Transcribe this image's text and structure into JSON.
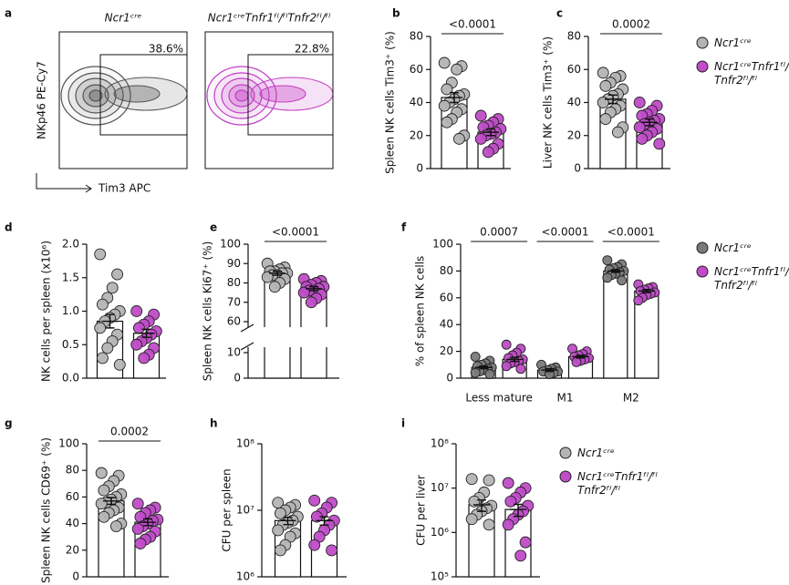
{
  "chart_data": [
    {
      "type": "flow",
      "panel": "a",
      "ylabel": "NKp46 PE-Cy7",
      "xlabel": "Tim3 APC",
      "plots": [
        {
          "title": "Ncr1ᶜʳᵉ",
          "color": "#555555"
        },
        {
          "title": "Ncr1ᶜʳᵉTnfr1ᶠˡ/ᶠˡTnfr2ᶠˡ/ᶠˡ",
          "color": "#c23fc4"
        }
      ],
      "values": [
        38.6,
        22.8
      ],
      "value_labels": [
        "38.6%",
        "22.8%"
      ]
    },
    {
      "type": "bar",
      "panel": "b",
      "ylabel": "Spleen NK cells Tim3⁺ (%)",
      "ylim": [
        0,
        80
      ],
      "yticks": [
        0,
        20,
        40,
        60,
        80
      ],
      "pvalues": [
        "<0.0001"
      ],
      "series": [
        {
          "name": "Ncr1ᶜʳᵉ",
          "color": "#b4b4b4",
          "values": [
            43
          ],
          "errors": [
            3
          ],
          "points": [
            [
              64,
              62,
              60,
              52,
              48,
              45,
              44,
              42,
              40,
              38,
              36,
              34,
              30,
              28,
              20,
              18
            ]
          ]
        },
        {
          "name": "Ncr1ᶜʳᵉTnfr1ᶠˡ/ᶠˡ Tnfr2ᶠˡ/ᶠˡ",
          "color": "#c04cc8",
          "values": [
            22
          ],
          "errors": [
            2
          ],
          "points": [
            [
              32,
              30,
              28,
              26,
              25,
              24,
              22,
              21,
              20,
              18,
              15,
              12,
              10
            ]
          ]
        }
      ]
    },
    {
      "type": "bar",
      "panel": "c",
      "ylabel": "Liver NK cells Tim3⁺ (%)",
      "ylim": [
        0,
        80
      ],
      "yticks": [
        0,
        20,
        40,
        60,
        80
      ],
      "pvalues": [
        "0.0002"
      ],
      "legend": "right",
      "series": [
        {
          "name": "Ncr1ᶜʳᵉ",
          "color": "#b4b4b4",
          "values": [
            42
          ],
          "errors": [
            2.5
          ],
          "points": [
            [
              58,
              56,
              55,
              52,
              50,
              48,
              45,
              44,
              42,
              40,
              38,
              36,
              34,
              30,
              25,
              22
            ]
          ]
        },
        {
          "name": "Ncr1ᶜʳᵉTnfr1ᶠˡ/ᶠˡ Tnfr2ᶠˡ/ᶠˡ",
          "color": "#c04cc8",
          "values": [
            28
          ],
          "errors": [
            2
          ],
          "points": [
            [
              40,
              38,
              35,
              33,
              32,
              30,
              29,
              28,
              27,
              25,
              24,
              22,
              20,
              18,
              15
            ]
          ]
        }
      ]
    },
    {
      "type": "bar",
      "panel": "d",
      "ylabel": "NK cells per spleen (x10⁶)",
      "ylim": [
        0,
        2
      ],
      "yticks": [
        {
          "value": 0,
          "label": "0.0"
        },
        0.5,
        {
          "value": 1,
          "label": "1.0"
        },
        1.5,
        {
          "value": 2,
          "label": "2.0"
        }
      ],
      "series": [
        {
          "name": "Ncr1ᶜʳᵉ",
          "color": "#b4b4b4",
          "values": [
            0.85
          ],
          "errors": [
            0.1
          ],
          "points": [
            [
              1.85,
              1.55,
              1.35,
              1.2,
              1.1,
              1.0,
              0.95,
              0.9,
              0.85,
              0.75,
              0.65,
              0.55,
              0.45,
              0.3,
              0.2
            ]
          ]
        },
        {
          "name": "Ncr1ᶜʳᵉTnfr1ᶠˡ/ᶠˡ Tnfr2ᶠˡ/ᶠˡ",
          "color": "#c04cc8",
          "values": [
            0.67
          ],
          "errors": [
            0.06
          ],
          "points": [
            [
              1.0,
              0.95,
              0.85,
              0.8,
              0.75,
              0.7,
              0.65,
              0.6,
              0.55,
              0.5,
              0.45,
              0.35,
              0.3
            ]
          ]
        }
      ]
    },
    {
      "type": "bar",
      "panel": "e",
      "ylabel": "Spleen NK cells Ki67⁺ (%)",
      "ylim": [
        0,
        100
      ],
      "ybreak": [
        10,
        60
      ],
      "yticks": [
        0,
        10,
        60,
        70,
        80,
        90,
        100
      ],
      "pvalues": [
        "<0.0001"
      ],
      "series": [
        {
          "name": "Ncr1ᶜʳᵉ",
          "color": "#b4b4b4",
          "values": [
            85
          ],
          "errors": [
            1
          ],
          "points": [
            [
              90,
              88,
              87,
              86,
              86,
              85,
              85,
              84,
              84,
              83,
              82,
              80,
              78
            ]
          ]
        },
        {
          "name": "Ncr1ᶜʳᵉTnfr1ᶠˡ/ᶠˡ Tnfr2ᶠˡ/ᶠˡ",
          "color": "#c04cc8",
          "values": [
            77
          ],
          "errors": [
            1
          ],
          "points": [
            [
              82,
              81,
              80,
              79,
              78,
              78,
              77,
              76,
              76,
              75,
              74,
              72,
              70
            ]
          ]
        }
      ]
    },
    {
      "type": "bar",
      "panel": "f",
      "ylabel": "% of spleen NK cells",
      "ylim": [
        0,
        100
      ],
      "yticks": [
        0,
        20,
        40,
        60,
        80,
        100
      ],
      "legend": "right",
      "categories": [
        "Less mature",
        "M1",
        "M2"
      ],
      "pvalues": [
        "0.0007",
        "<0.0001",
        "<0.0001"
      ],
      "series": [
        {
          "name": "Ncr1ᶜʳᵉ",
          "color": "#7a7a7a",
          "values": [
            8,
            6,
            80
          ],
          "errors": [
            1,
            1,
            1
          ],
          "points": [
            [
              16,
              13,
              11,
              10,
              9,
              8,
              7,
              6,
              5,
              4,
              3
            ],
            [
              10,
              8,
              7,
              6,
              5,
              5,
              4,
              3
            ],
            [
              88,
              85,
              83,
              82,
              81,
              80,
              79,
              78,
              77,
              75,
              73
            ]
          ]
        },
        {
          "name": "Ncr1ᶜʳᵉTnfr1ᶠˡ/ᶠˡ Tnfr2ᶠˡ/ᶠˡ",
          "color": "#c04cc8",
          "values": [
            14,
            16,
            65
          ],
          "errors": [
            1.5,
            1,
            1.2
          ],
          "points": [
            [
              25,
              22,
              19,
              17,
              15,
              14,
              13,
              12,
              11,
              9,
              7
            ],
            [
              22,
              20,
              18,
              17,
              16,
              15,
              14,
              13,
              12
            ],
            [
              70,
              68,
              67,
              66,
              65,
              64,
              63,
              62,
              60,
              58
            ]
          ]
        }
      ]
    },
    {
      "type": "bar",
      "panel": "g",
      "ylabel": "Spleen NK cells CD69⁺ (%)",
      "ylim": [
        0,
        100
      ],
      "yticks": [
        0,
        20,
        40,
        60,
        80,
        100
      ],
      "pvalues": [
        "0.0002"
      ],
      "series": [
        {
          "name": "Ncr1ᶜʳᵉ",
          "color": "#b4b4b4",
          "values": [
            57
          ],
          "errors": [
            2.5
          ],
          "points": [
            [
              78,
              76,
              72,
              68,
              65,
              62,
              60,
              58,
              56,
              55,
              52,
              50,
              48,
              45,
              40,
              38
            ]
          ]
        },
        {
          "name": "Ncr1ᶜʳᵉTnfr1ᶠˡ/ᶠˡ Tnfr2ᶠˡ/ᶠˡ",
          "color": "#c04cc8",
          "values": [
            41
          ],
          "errors": [
            2.5
          ],
          "points": [
            [
              55,
              52,
              50,
              48,
              45,
              43,
              42,
              40,
              38,
              36,
              34,
              30,
              28,
              25
            ]
          ]
        }
      ]
    },
    {
      "type": "bar",
      "panel": "h",
      "ylabel": "CFU per spleen",
      "log_scale": true,
      "ylim": [
        1000000,
        100000000
      ],
      "yticks": [
        {
          "value": 1000000,
          "label": "10⁶"
        },
        {
          "value": 10000000,
          "label": "10⁷"
        },
        {
          "value": 100000000,
          "label": "10⁸"
        }
      ],
      "series": [
        {
          "name": "Ncr1ᶜʳᵉ",
          "color": "#b4b4b4",
          "values": [
            7000000
          ],
          "errors": [
            900000
          ],
          "points": [
            [
              13000000,
              12000000,
              11000000,
              10000000,
              9000000,
              8000000,
              7000000,
              6500000,
              6000000,
              5000000,
              4500000,
              4000000,
              3000000,
              2500000
            ]
          ]
        },
        {
          "name": "Ncr1ᶜʳᵉTnfr1ᶠˡ/ᶠˡ Tnfr2ᶠˡ/ᶠˡ",
          "color": "#c04cc8",
          "values": [
            7000000
          ],
          "errors": [
            1000000
          ],
          "points": [
            [
              14000000,
              13000000,
              11000000,
              9000000,
              8000000,
              7000000,
              6000000,
              5000000,
              4000000,
              3000000,
              2500000
            ]
          ]
        }
      ]
    },
    {
      "type": "bar",
      "panel": "i",
      "ylabel": "CFU per liver",
      "log_scale": true,
      "ylim": [
        100000,
        100000000
      ],
      "legend": "right",
      "yticks": [
        {
          "value": 100000,
          "label": "10⁵"
        },
        {
          "value": 1000000,
          "label": "10⁶"
        },
        {
          "value": 10000000,
          "label": "10⁷"
        },
        {
          "value": 100000000,
          "label": "10⁸"
        }
      ],
      "series": [
        {
          "name": "Ncr1ᶜʳᵉ",
          "color": "#b4b4b4",
          "values": [
            4200000
          ],
          "errors": [
            1200000
          ],
          "points": [
            [
              16000000,
              15000000,
              8000000,
              6000000,
              5000000,
              4000000,
              3500000,
              3000000,
              2500000,
              2000000,
              1500000
            ]
          ]
        },
        {
          "name": "Ncr1ᶜʳᵉTnfr1ᶠˡ/ᶠˡ Tnfr2ᶠˡ/ᶠˡ",
          "color": "#c04cc8",
          "values": [
            3300000
          ],
          "errors": [
            1000000
          ],
          "points": [
            [
              13000000,
              10000000,
              8000000,
              6000000,
              5000000,
              4000000,
              3000000,
              2500000,
              2000000,
              1500000,
              600000,
              300000
            ]
          ]
        }
      ]
    }
  ]
}
